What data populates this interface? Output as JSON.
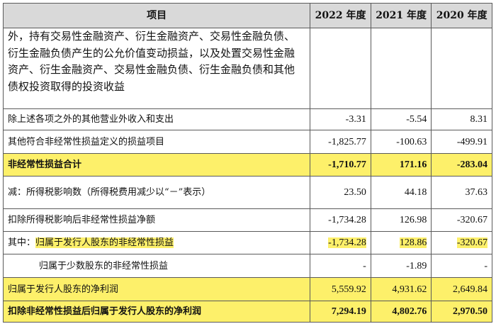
{
  "header": {
    "item": "项目",
    "y2022": "2022 年度",
    "y2021": "2021 年度",
    "y2020": "2020 年度"
  },
  "rows": [
    {
      "item": "外，持有交易性金融资产、衍生金融资产、交易性金融负债、衍生金融负债产生的公允价值变动损益，以及处置交易性金融资产、衍生金融资产、交易性金融负债、衍生金融负债和其他债权投资取得的投资收益",
      "y2022": "",
      "y2021": "",
      "y2020": ""
    },
    {
      "item": "除上述各项之外的其他营业外收入和支出",
      "y2022": "-3.31",
      "y2021": "-5.54",
      "y2020": "8.31"
    },
    {
      "item": "其他符合非经常性损益定义的损益项目",
      "y2022": "-1,825.77",
      "y2021": "-100.63",
      "y2020": "-499.91"
    },
    {
      "item": "非经常性损益合计",
      "y2022": "-1,710.77",
      "y2021": "171.16",
      "y2020": "-283.04"
    },
    {
      "item": "减：所得税影响数（所得税费用减少以“－”表示）",
      "y2022": "23.50",
      "y2021": "44.18",
      "y2020": "37.63"
    },
    {
      "item": "扣除所得税影响后非经常性损益净额",
      "y2022": "-1,734.28",
      "y2021": "126.98",
      "y2020": "-320.67"
    },
    {
      "item_prefix": "其中：",
      "item": "归属于发行人股东的非经常性损益",
      "y2022": "-1,734.28",
      "y2021": "128.86",
      "y2020": "-320.67"
    },
    {
      "item": "归属于少数股东的非经常性损益",
      "y2022": "-",
      "y2021": "-1.89",
      "y2020": "-"
    },
    {
      "item": "归属于发行人股东的净利润",
      "y2022": "5,559.92",
      "y2021": "4,931.62",
      "y2020": "2,649.84"
    },
    {
      "item": "扣除非经常性损益后归属于发行人股东的净利润",
      "y2022": "7,294.19",
      "y2021": "4,802.76",
      "y2020": "2,970.50"
    }
  ]
}
